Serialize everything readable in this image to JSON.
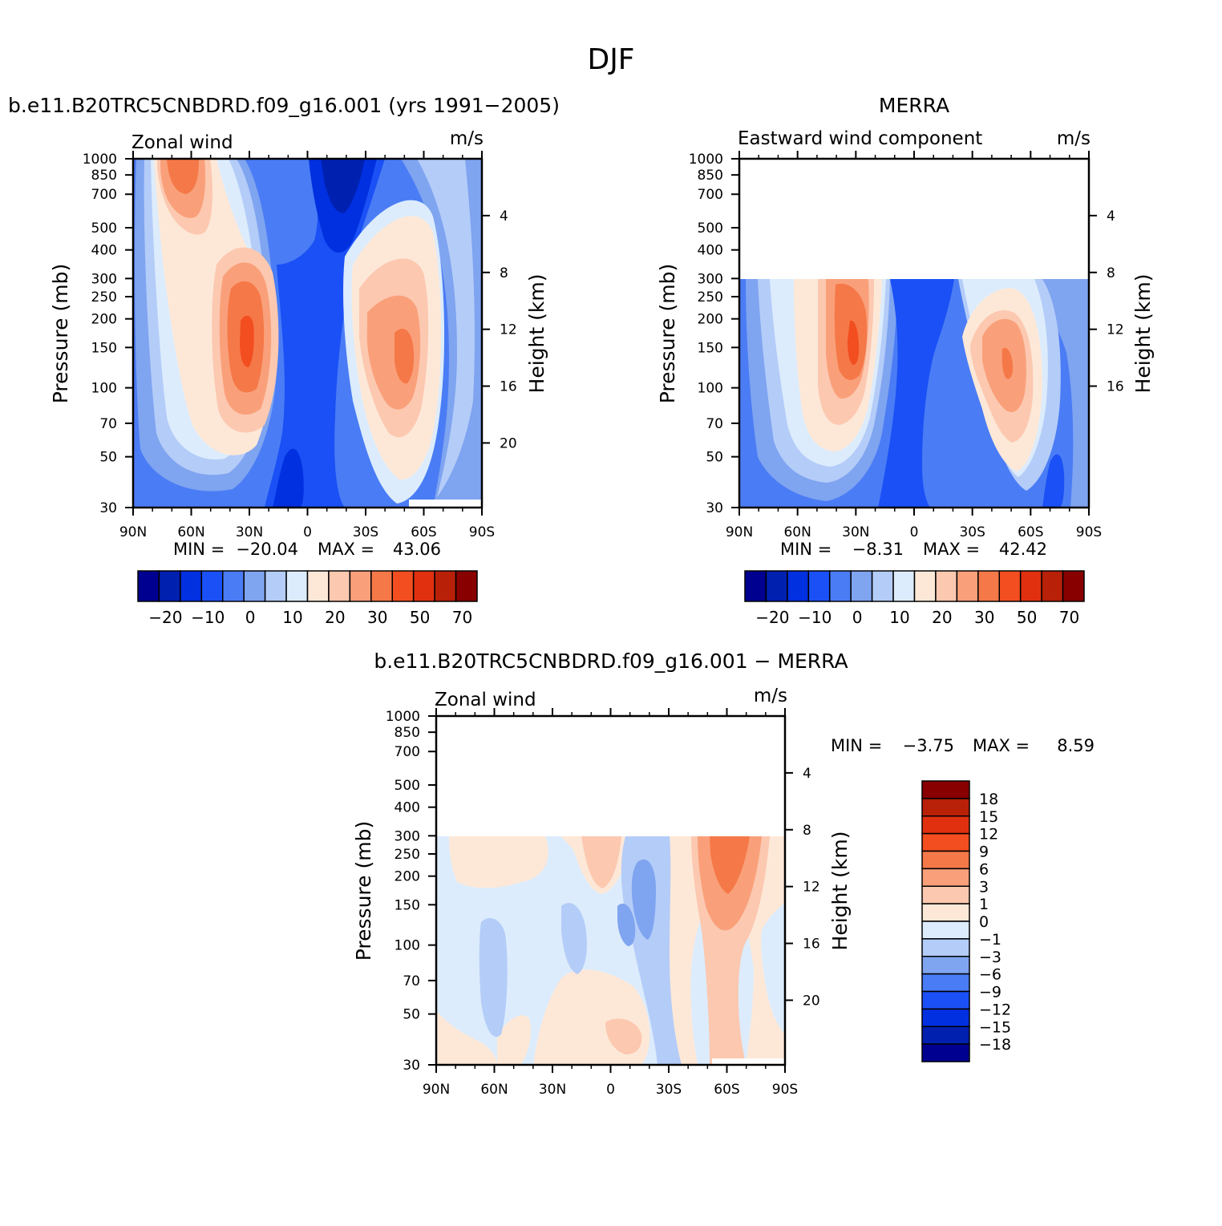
{
  "page_title": "DJF",
  "chart_data": [
    {
      "type": "heatmap",
      "title": "b.e11.B20TRC5CNBDRD.f09_g16.001 (yrs 1991-2005)",
      "left_string": "Zonal wind",
      "units": "m/s",
      "xlabel": "",
      "ylabel": "Pressure (mb)",
      "y2label": "Height (km)",
      "x_ticks": [
        "90N",
        "60N",
        "30N",
        "0",
        "30S",
        "60S",
        "90S"
      ],
      "y_ticks": [
        "30",
        "50",
        "70",
        "100",
        "150",
        "200",
        "250",
        "300",
        "400",
        "500",
        "700",
        "850",
        "1000"
      ],
      "y2_ticks": [
        "20",
        "16",
        "12",
        "8",
        "4"
      ],
      "ylim": [
        1000,
        30
      ],
      "y_scale": "log",
      "stats": {
        "min_label": "MIN =",
        "min": "-20.04",
        "max_label": "MAX =",
        "max": "43.06"
      },
      "colorbar": {
        "orientation": "horizontal",
        "labels": [
          "-20",
          "-10",
          "0",
          "10",
          "20",
          "30",
          "50",
          "70"
        ],
        "colors": [
          "#000090",
          "#0020b0",
          "#0030e0",
          "#1a50f5",
          "#4a7cf5",
          "#7fa4f0",
          "#b4ccf8",
          "#dcecfc",
          "#fde8d8",
          "#fcc8b0",
          "#f9a07a",
          "#f57848",
          "#f24e20",
          "#e03010",
          "#b82008",
          "#880000"
        ]
      },
      "data_top_pressure": 30
    },
    {
      "type": "heatmap",
      "title": "MERRA",
      "left_string": "Eastward wind component",
      "units": "m/s",
      "xlabel": "",
      "ylabel": "Pressure (mb)",
      "y2label": "Height (km)",
      "x_ticks": [
        "90N",
        "60N",
        "30N",
        "0",
        "30S",
        "60S",
        "90S"
      ],
      "y_ticks": [
        "30",
        "50",
        "70",
        "100",
        "150",
        "200",
        "250",
        "300",
        "400",
        "500",
        "700",
        "850",
        "1000"
      ],
      "y2_ticks": [
        "16",
        "12",
        "8",
        "4"
      ],
      "ylim": [
        1000,
        30
      ],
      "y_scale": "log",
      "stats": {
        "min_label": "MIN =",
        "min": "-8.31",
        "max_label": "MAX =",
        "max": "42.42"
      },
      "colorbar": {
        "orientation": "horizontal",
        "labels": [
          "-20",
          "-10",
          "0",
          "10",
          "20",
          "30",
          "50",
          "70"
        ],
        "colors": [
          "#000090",
          "#0020b0",
          "#0030e0",
          "#1a50f5",
          "#4a7cf5",
          "#7fa4f0",
          "#b4ccf8",
          "#dcecfc",
          "#fde8d8",
          "#fcc8b0",
          "#f9a07a",
          "#f57848",
          "#f24e20",
          "#e03010",
          "#b82008",
          "#880000"
        ]
      },
      "data_top_pressure": 100
    },
    {
      "type": "heatmap",
      "title": "b.e11.B20TRC5CNBDRD.f09_g16.001 - MERRA",
      "left_string": "Zonal wind",
      "units": "m/s",
      "xlabel": "",
      "ylabel": "Pressure (mb)",
      "y2label": "Height (km)",
      "x_ticks": [
        "90N",
        "60N",
        "30N",
        "0",
        "30S",
        "60S",
        "90S"
      ],
      "y_ticks": [
        "30",
        "50",
        "70",
        "100",
        "150",
        "200",
        "250",
        "300",
        "400",
        "500",
        "700",
        "850",
        "1000"
      ],
      "y2_ticks": [
        "20",
        "16",
        "12",
        "8",
        "4"
      ],
      "ylim": [
        1000,
        30
      ],
      "y_scale": "log",
      "stats": {
        "min_label": "MIN =",
        "min": "-3.75",
        "max_label": "MAX =",
        "max": "8.59"
      },
      "colorbar": {
        "orientation": "vertical",
        "labels": [
          "18",
          "15",
          "12",
          "9",
          "6",
          "3",
          "1",
          "0",
          "-1",
          "-3",
          "-6",
          "-9",
          "-12",
          "-15",
          "-18"
        ],
        "colors": [
          "#880000",
          "#b82008",
          "#e03010",
          "#f24e20",
          "#f57848",
          "#f9a07a",
          "#fcc8b0",
          "#fde8d8",
          "#dcecfc",
          "#b4ccf8",
          "#7fa4f0",
          "#4a7cf5",
          "#1a50f5",
          "#0030e0",
          "#0020b0",
          "#000090"
        ]
      },
      "data_top_pressure": 100
    }
  ]
}
